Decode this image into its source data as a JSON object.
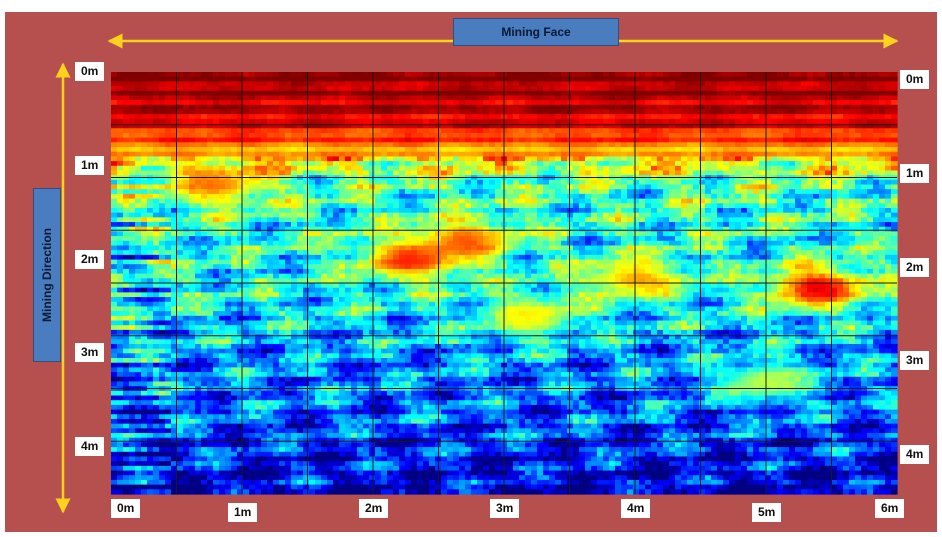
{
  "colors": {
    "background": "#b5504e",
    "arrow": "#ffd31c",
    "label_box": "#4a7cc0",
    "grid": "#1a1a1a"
  },
  "chart_data": {
    "type": "heatmap",
    "title": "Mining Face",
    "ylabel": "Mining Direction",
    "x_unit": "m",
    "y_unit": "m",
    "xlim": [
      0,
      6
    ],
    "ylim": [
      0,
      4.5
    ],
    "x_ticks": [
      "0m",
      "1m",
      "2m",
      "3m",
      "4m",
      "5m",
      "6m"
    ],
    "y_ticks": [
      "0m",
      "1m",
      "2m",
      "3m",
      "4m"
    ],
    "colormap": "jet",
    "grid": true,
    "depth_profile_intensity": [
      {
        "depth": 0.0,
        "level": 0.98
      },
      {
        "depth": 0.5,
        "level": 0.92
      },
      {
        "depth": 0.8,
        "level": 0.75
      },
      {
        "depth": 1.2,
        "level": 0.45
      },
      {
        "depth": 1.8,
        "level": 0.4
      },
      {
        "depth": 2.4,
        "level": 0.38
      },
      {
        "depth": 3.0,
        "level": 0.28
      },
      {
        "depth": 3.8,
        "level": 0.2
      },
      {
        "depth": 4.5,
        "level": 0.08
      }
    ],
    "hotspots": [
      {
        "x": 0.8,
        "y": 1.2,
        "level": 0.78
      },
      {
        "x": 2.3,
        "y": 2.0,
        "level": 0.88
      },
      {
        "x": 2.7,
        "y": 1.8,
        "level": 0.82
      },
      {
        "x": 4.0,
        "y": 2.2,
        "level": 0.75
      },
      {
        "x": 5.4,
        "y": 2.3,
        "level": 0.95
      },
      {
        "x": 3.2,
        "y": 2.6,
        "level": 0.66
      },
      {
        "x": 5.0,
        "y": 3.3,
        "level": 0.6
      }
    ]
  }
}
